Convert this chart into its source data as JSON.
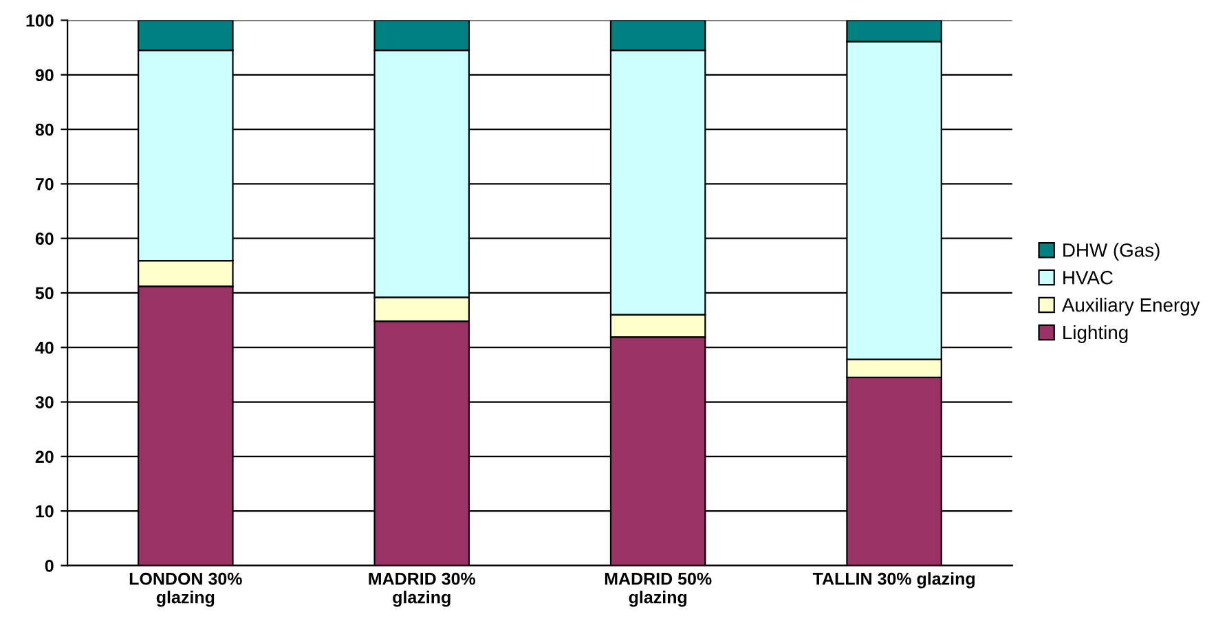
{
  "chart_data": {
    "type": "bar",
    "stacked": true,
    "categories": [
      "LONDON 30%\nglazing",
      "MADRID 30%\nglazing",
      "MADRID 50%\nglazing",
      "TALLIN 30% glazing"
    ],
    "series": [
      {
        "name": "Lighting",
        "color": "#993366",
        "values": [
          51.2,
          44.8,
          41.9,
          34.5
        ]
      },
      {
        "name": "Auxiliary Energy",
        "color": "#ffffcc",
        "values": [
          4.7,
          4.4,
          4.1,
          3.3
        ]
      },
      {
        "name": "HVAC",
        "color": "#ccffff",
        "values": [
          38.6,
          45.3,
          48.5,
          58.3
        ]
      },
      {
        "name": "DHW (Gas)",
        "color": "#008080",
        "values": [
          5.5,
          5.5,
          5.5,
          3.9
        ]
      }
    ],
    "ylim": [
      0,
      100
    ],
    "yticks": [
      0,
      10,
      20,
      30,
      40,
      50,
      60,
      70,
      80,
      90,
      100
    ],
    "grid": "y",
    "legend": "right"
  }
}
